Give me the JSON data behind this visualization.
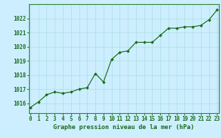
{
  "x": [
    0,
    1,
    2,
    3,
    4,
    5,
    6,
    7,
    8,
    9,
    10,
    11,
    12,
    13,
    14,
    15,
    16,
    17,
    18,
    19,
    20,
    21,
    22,
    23
  ],
  "y": [
    1015.7,
    1016.1,
    1016.6,
    1016.8,
    1016.7,
    1016.8,
    1017.0,
    1017.1,
    1018.1,
    1017.5,
    1019.1,
    1019.6,
    1019.7,
    1020.3,
    1020.3,
    1020.3,
    1020.8,
    1021.3,
    1021.3,
    1021.4,
    1021.4,
    1021.5,
    1021.9,
    1022.6
  ],
  "line_color": "#1a6b1a",
  "marker": "D",
  "marker_size": 2.0,
  "line_width": 0.9,
  "background_color": "#cceeff",
  "grid_color": "#aadddd",
  "xlabel_text": "Graphe pression niveau de la mer (hPa)",
  "ylim_min": 1015.3,
  "ylim_max": 1023.0,
  "xlim_min": -0.2,
  "xlim_max": 23.2,
  "yticks": [
    1016,
    1017,
    1018,
    1019,
    1020,
    1021,
    1022
  ],
  "xticks": [
    0,
    1,
    2,
    3,
    4,
    5,
    6,
    7,
    8,
    9,
    10,
    11,
    12,
    13,
    14,
    15,
    16,
    17,
    18,
    19,
    20,
    21,
    22,
    23
  ],
  "tick_color": "#1a6b1a",
  "tick_fontsize": 5.5,
  "xlabel_fontsize": 6.5,
  "spine_color": "#2a7a2a"
}
